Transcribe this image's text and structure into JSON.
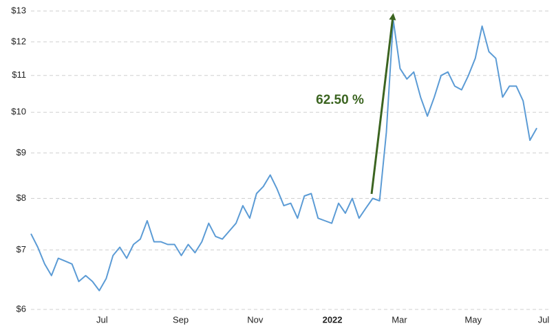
{
  "chart_data": {
    "type": "line",
    "annotation": "62.50 %",
    "log_scale": true,
    "grid": true,
    "color": "#5b9bd5",
    "xlim": [
      0,
      75
    ],
    "xticks": [
      {
        "value": 10.4,
        "label": "Jul"
      },
      {
        "value": 21.9,
        "label": "Sep"
      },
      {
        "value": 32.8,
        "label": "Nov"
      },
      {
        "value": 44.1,
        "label": "2022",
        "bold": true
      },
      {
        "value": 53.9,
        "label": "Mar"
      },
      {
        "value": 64.7,
        "label": "May"
      },
      {
        "value": 75,
        "label": "Jul"
      }
    ],
    "ylim": [
      6,
      13
    ],
    "yticks": [
      {
        "value": 6,
        "label": "$6"
      },
      {
        "value": 7,
        "label": "$7"
      },
      {
        "value": 8,
        "label": "$8"
      },
      {
        "value": 9,
        "label": "$9"
      },
      {
        "value": 10,
        "label": "$10"
      },
      {
        "value": 11,
        "label": "$11"
      },
      {
        "value": 12,
        "label": "$12"
      },
      {
        "value": 13,
        "label": "$13"
      }
    ],
    "values": [
      7.3,
      7.05,
      6.75,
      6.55,
      6.85,
      6.8,
      6.75,
      6.45,
      6.55,
      6.45,
      6.3,
      6.5,
      6.9,
      7.05,
      6.85,
      7.1,
      7.2,
      7.55,
      7.15,
      7.15,
      7.1,
      7.1,
      6.9,
      7.1,
      6.95,
      7.15,
      7.5,
      7.25,
      7.2,
      7.35,
      7.5,
      7.85,
      7.6,
      8.1,
      8.25,
      8.5,
      8.2,
      7.85,
      7.9,
      7.6,
      8.05,
      8.1,
      7.6,
      7.55,
      7.5,
      7.9,
      7.7,
      8.0,
      7.6,
      7.8,
      8.0,
      7.95,
      9.5,
      12.7,
      11.2,
      10.9,
      11.1,
      10.4,
      9.9,
      10.4,
      11.0,
      11.1,
      10.7,
      10.6,
      11.0,
      11.5,
      12.5,
      11.7,
      11.5,
      10.4,
      10.7,
      10.7,
      10.3,
      9.3,
      9.6
    ]
  }
}
